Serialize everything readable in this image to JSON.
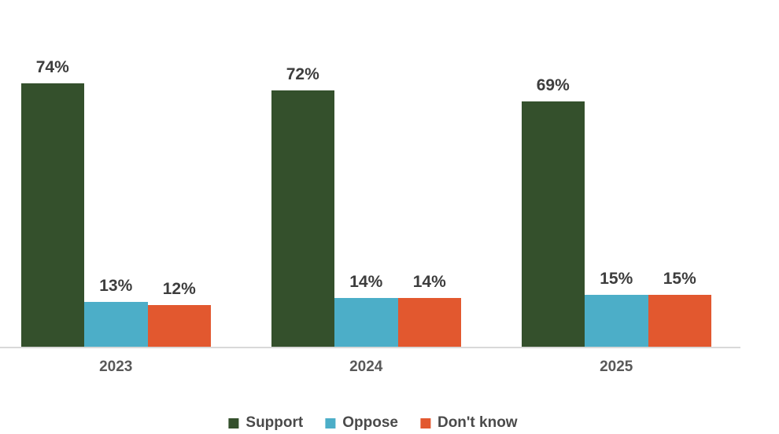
{
  "chart_data": {
    "type": "bar",
    "categories": [
      "2023",
      "2024",
      "2025"
    ],
    "series": [
      {
        "name": "Support",
        "color": "#34502C",
        "values": [
          74,
          72,
          69
        ]
      },
      {
        "name": "Oppose",
        "color": "#4CAEC8",
        "values": [
          13,
          14,
          15
        ]
      },
      {
        "name": "Don't know",
        "color": "#E2582F",
        "values": [
          12,
          14,
          15
        ]
      }
    ],
    "value_suffix": "%",
    "title": "",
    "xlabel": "",
    "ylabel": "",
    "ylim": [
      0,
      100
    ],
    "grid": false,
    "legend_position": "bottom",
    "data_labels": true
  },
  "colors": {
    "value_label": "#3D3D3D",
    "category_label": "#595959",
    "legend_label": "#4A4A4A",
    "axis_line": "#D9D9D9",
    "background": "#FFFFFF"
  }
}
